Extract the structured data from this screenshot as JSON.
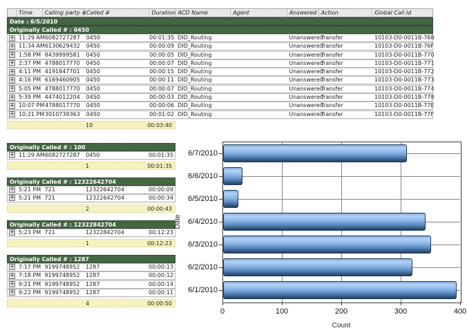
{
  "report": {
    "columns": [
      "Time",
      "Calling party #",
      "Called #",
      "Duration",
      "ACD Name",
      "Agent",
      "Answered",
      "Action",
      "Global Call Id"
    ],
    "date_band": "Date : 6/5/2010",
    "expand_glyph": "+",
    "groups": [
      {
        "title": "Originally Called # : 0450",
        "full": true,
        "rows": [
          [
            "11:29 AM",
            "6082727287",
            "0450",
            "00:01:35",
            "DID_Routing",
            "",
            "Unanswered",
            "Transfer",
            "10103-D0-0011B-768"
          ],
          [
            "11:34 AM",
            "6130629432",
            "0450",
            "00:00:09",
            "DID_Routing",
            "",
            "Unanswered",
            "Transfer",
            "10103-D0-0011B-76F"
          ],
          [
            "1:58 PM",
            "8439999581",
            "0450",
            "00:00:05",
            "DID_Routing",
            "",
            "Unanswered",
            "Transfer",
            "10103-D0-0011B-770"
          ],
          [
            "2:37 PM",
            "4788017770",
            "0450",
            "00:00:07",
            "DID_Routing",
            "",
            "Unanswered",
            "Transfer",
            "10103-D0-0011B-771"
          ],
          [
            "4:11 PM",
            "4191847701",
            "0450",
            "00:00:15",
            "DID_Routing",
            "",
            "Unanswered",
            "Transfer",
            "10103-D0-0011B-772"
          ],
          [
            "4:16 PM",
            "6169460905",
            "0450",
            "00:00:11",
            "DID_Routing",
            "",
            "Unanswered",
            "Transfer",
            "10103-D0-0011B-773"
          ],
          [
            "5:05 PM",
            "4788017770",
            "0450",
            "00:00:07",
            "DID_Routing",
            "",
            "Unanswered",
            "Transfer",
            "10103-D0-0011B-774"
          ],
          [
            "5:39 PM",
            "4474012204",
            "0450",
            "00:00:03",
            "DID_Routing",
            "",
            "Unanswered",
            "Transfer",
            "10103-D0-0011B-778"
          ],
          [
            "10:07 PM",
            "4788017770",
            "0450",
            "00:00:06",
            "DID_Routing",
            "",
            "Unanswered",
            "Transfer",
            "10103-D0-0011B-77E"
          ],
          [
            "10:21 PM",
            "3010739363",
            "0450",
            "00:01:02",
            "DID_Routing",
            "",
            "Unanswered",
            "Transfer",
            "10103-D0-0011B-77F"
          ]
        ],
        "summary": {
          "count": "10",
          "total": "00:03:40"
        }
      },
      {
        "title": "Originally Called # : 100",
        "full": false,
        "rows": [
          [
            "11:29 AM",
            "6082727287",
            "0450",
            "00:01:35"
          ]
        ],
        "summary": {
          "count": "1",
          "total": "00:01:35"
        }
      },
      {
        "title": "Originally Called # : 12322642704",
        "full": false,
        "rows": [
          [
            "5:21 PM",
            "721",
            "12322642704",
            "00:00:09"
          ],
          [
            "5:21 PM",
            "721",
            "12322642704",
            "00:00:34"
          ]
        ],
        "summary": {
          "count": "2",
          "total": "00:00:43"
        }
      },
      {
        "title": "Originally Called # : 12322842704",
        "full": false,
        "rows": [
          [
            "5:23 PM",
            "721",
            "12322842704",
            "00:12:23"
          ]
        ],
        "summary": {
          "count": "1",
          "total": "00:12:23"
        }
      },
      {
        "title": "Originally Called # : 1287",
        "full": false,
        "rows": [
          [
            "7:17 PM",
            "9199748952",
            "1287",
            "00:00:13"
          ],
          [
            "7:18 PM",
            "9199748952",
            "1287",
            "00:00:12"
          ],
          [
            "9:21 PM",
            "9199748952",
            "1287",
            "00:00:14"
          ],
          [
            "9:22 PM",
            "9199748952",
            "1287",
            "00:00:11"
          ]
        ],
        "summary": {
          "count": "4",
          "total": "00:00:50"
        }
      }
    ]
  },
  "chart_data": {
    "type": "bar",
    "orientation": "horizontal",
    "categories": [
      "6/7/2010",
      "6/6/2010",
      "6/5/2010",
      "6/4/2010",
      "6/3/2010",
      "6/2/2010",
      "6/1/2010"
    ],
    "values": [
      309,
      33,
      26,
      341,
      350,
      318,
      393
    ],
    "title": "",
    "xlabel": "Count",
    "ylabel": "Date",
    "xlim": [
      0,
      400
    ],
    "xticks": [
      0,
      100,
      200,
      300,
      400
    ],
    "grid": true,
    "legend": "none",
    "bar_color": "#5c8bc5",
    "bar_border_color": "#1d3a5f",
    "gridline_color": "#848484"
  }
}
